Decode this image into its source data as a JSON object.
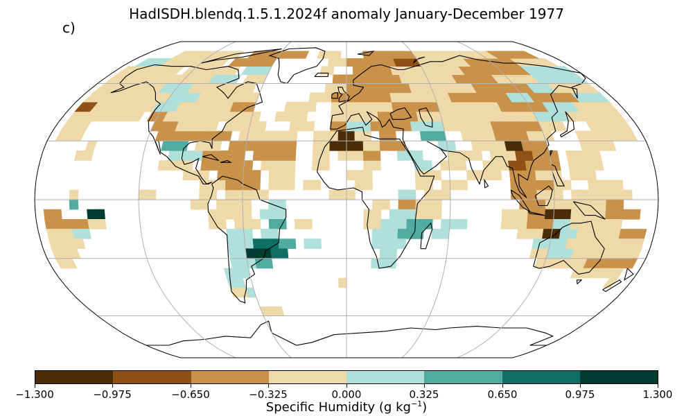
{
  "title": "HadISDH.blendq.1.5.1.2024f anomaly January-December 1977",
  "panel_label": "c)",
  "colorbar": {
    "label_main": "Specific Humidity (g kg",
    "label_sup": "−1",
    "label_end": ")",
    "ticks": [
      "−1.300",
      "−0.975",
      "−0.650",
      "−0.325",
      "0.000",
      "0.325",
      "0.650",
      "0.975",
      "1.300"
    ],
    "colors": [
      "#4a2d06",
      "#8f5114",
      "#c9924a",
      "#efd9a8",
      "#b0e0da",
      "#51aba0",
      "#0f6f64",
      "#003c30"
    ]
  },
  "chart_data": {
    "type": "heatmap",
    "projection": "Robinson",
    "grid": true,
    "levels": [
      -1.3,
      -0.975,
      -0.65,
      -0.325,
      0.0,
      0.325,
      0.65,
      0.975,
      1.3
    ],
    "cell_size_deg": 5,
    "lat_range": [
      -90,
      90
    ],
    "lon_range": [
      -180,
      180
    ]
  }
}
